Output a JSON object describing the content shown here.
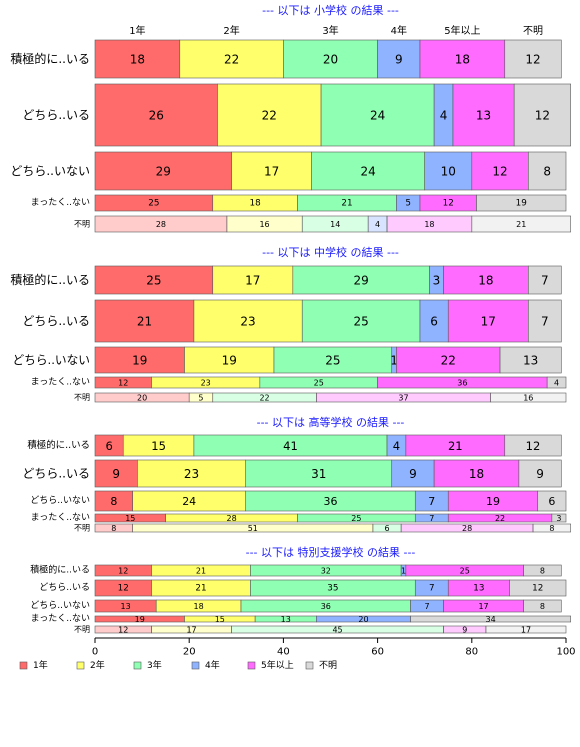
{
  "colors": {
    "1年": "#ff6b6b",
    "2年": "#ffff6b",
    "3年": "#8fffb3",
    "4年": "#8fb3ff",
    "5年以上": "#ff6bff",
    "不明": "#d9d9d9"
  },
  "chart_data": {
    "type": "bar",
    "orientation": "horizontal-stacked-100",
    "xlim": [
      0,
      100
    ],
    "x_ticks": [
      0,
      20,
      40,
      60,
      80,
      100
    ],
    "column_headers": [
      "1年",
      "2年",
      "3年",
      "4年",
      "5年以上",
      "不明"
    ],
    "categories": [
      "1年",
      "2年",
      "3年",
      "4年",
      "5年以上",
      "不明"
    ],
    "legend": [
      "1年",
      "2年",
      "3年",
      "4年",
      "5年以上",
      "不明"
    ],
    "panels": [
      {
        "title": "--- 以下は 小学校 の結果 ---",
        "rows": [
          {
            "label": "積極的に..いる",
            "values": [
              18,
              22,
              20,
              9,
              18,
              12
            ]
          },
          {
            "label": "どちら..いる",
            "values": [
              26,
              22,
              24,
              4,
              13,
              12
            ]
          },
          {
            "label": "どちら..いない",
            "values": [
              29,
              17,
              24,
              10,
              12,
              8
            ]
          },
          {
            "label": "まったく..ない",
            "values": [
              25,
              18,
              21,
              5,
              12,
              19
            ]
          },
          {
            "label": "不明",
            "values": [
              28,
              16,
              14,
              4,
              18,
              21
            ]
          }
        ]
      },
      {
        "title": "--- 以下は 中学校 の結果 ---",
        "rows": [
          {
            "label": "積極的に..いる",
            "values": [
              25,
              17,
              29,
              3,
              18,
              7
            ]
          },
          {
            "label": "どちら..いる",
            "values": [
              21,
              23,
              25,
              6,
              17,
              7
            ]
          },
          {
            "label": "どちら..いない",
            "values": [
              19,
              19,
              25,
              1,
              22,
              13
            ]
          },
          {
            "label": "まったく..ない",
            "values": [
              12,
              23,
              25,
              0,
              36,
              4
            ]
          },
          {
            "label": "不明",
            "values": [
              20,
              5,
              22,
              0,
              37,
              16
            ]
          }
        ]
      },
      {
        "title": "--- 以下は 高等学校 の結果 ---",
        "rows": [
          {
            "label": "積極的に..いる",
            "values": [
              6,
              15,
              41,
              4,
              21,
              12
            ]
          },
          {
            "label": "どちら..いる",
            "values": [
              9,
              23,
              31,
              9,
              18,
              9
            ]
          },
          {
            "label": "どちら..いない",
            "values": [
              8,
              24,
              36,
              7,
              19,
              6
            ]
          },
          {
            "label": "まったく..ない",
            "values": [
              15,
              28,
              25,
              7,
              22,
              3
            ]
          },
          {
            "label": "不明",
            "values": [
              8,
              51,
              6,
              0,
              28,
              8
            ]
          }
        ]
      },
      {
        "title": "--- 以下は 特別支援学校 の結果 ---",
        "rows": [
          {
            "label": "積極的に..いる",
            "values": [
              12,
              21,
              32,
              1,
              25,
              8
            ]
          },
          {
            "label": "どちら..いる",
            "values": [
              12,
              21,
              35,
              7,
              13,
              12
            ]
          },
          {
            "label": "どちら..いない",
            "values": [
              13,
              18,
              36,
              7,
              17,
              8
            ]
          },
          {
            "label": "まったく..ない",
            "values": [
              19,
              15,
              13,
              20,
              0,
              34
            ]
          },
          {
            "label": "不明",
            "values": [
              12,
              17,
              45,
              0,
              9,
              17
            ]
          }
        ]
      }
    ]
  }
}
